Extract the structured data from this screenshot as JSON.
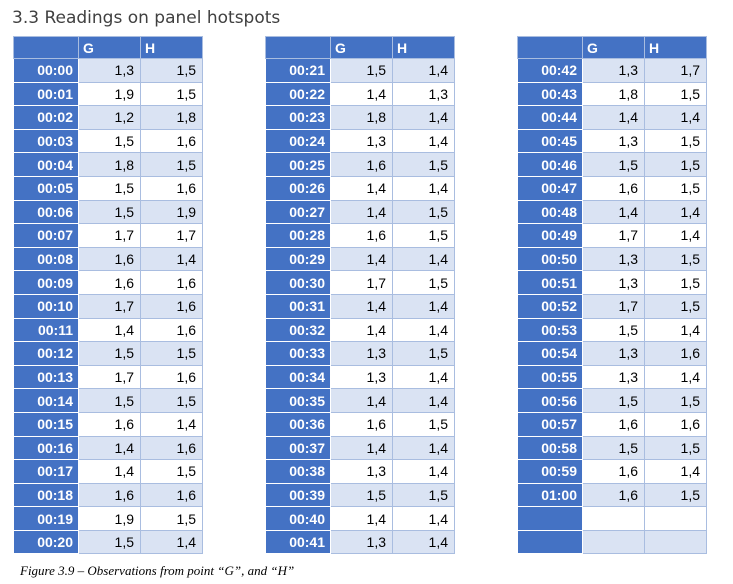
{
  "heading": "3.3 Readings on panel hotspots",
  "columns": {
    "time": "",
    "g": "G",
    "h": "H"
  },
  "blocks": [
    {
      "rows": [
        {
          "t": "00:00",
          "g": "1,3",
          "h": "1,5"
        },
        {
          "t": "00:01",
          "g": "1,9",
          "h": "1,5"
        },
        {
          "t": "00:02",
          "g": "1,2",
          "h": "1,8"
        },
        {
          "t": "00:03",
          "g": "1,5",
          "h": "1,6"
        },
        {
          "t": "00:04",
          "g": "1,8",
          "h": "1,5"
        },
        {
          "t": "00:05",
          "g": "1,5",
          "h": "1,6"
        },
        {
          "t": "00:06",
          "g": "1,5",
          "h": "1,9"
        },
        {
          "t": "00:07",
          "g": "1,7",
          "h": "1,7"
        },
        {
          "t": "00:08",
          "g": "1,6",
          "h": "1,4"
        },
        {
          "t": "00:09",
          "g": "1,6",
          "h": "1,6"
        },
        {
          "t": "00:10",
          "g": "1,7",
          "h": "1,6"
        },
        {
          "t": "00:11",
          "g": "1,4",
          "h": "1,6"
        },
        {
          "t": "00:12",
          "g": "1,5",
          "h": "1,5"
        },
        {
          "t": "00:13",
          "g": "1,7",
          "h": "1,6"
        },
        {
          "t": "00:14",
          "g": "1,5",
          "h": "1,5"
        },
        {
          "t": "00:15",
          "g": "1,6",
          "h": "1,4"
        },
        {
          "t": "00:16",
          "g": "1,4",
          "h": "1,6"
        },
        {
          "t": "00:17",
          "g": "1,4",
          "h": "1,5"
        },
        {
          "t": "00:18",
          "g": "1,6",
          "h": "1,6"
        },
        {
          "t": "00:19",
          "g": "1,9",
          "h": "1,5"
        },
        {
          "t": "00:20",
          "g": "1,5",
          "h": "1,4"
        }
      ]
    },
    {
      "rows": [
        {
          "t": "00:21",
          "g": "1,5",
          "h": "1,4"
        },
        {
          "t": "00:22",
          "g": "1,4",
          "h": "1,3"
        },
        {
          "t": "00:23",
          "g": "1,8",
          "h": "1,4"
        },
        {
          "t": "00:24",
          "g": "1,3",
          "h": "1,4"
        },
        {
          "t": "00:25",
          "g": "1,6",
          "h": "1,5"
        },
        {
          "t": "00:26",
          "g": "1,4",
          "h": "1,4"
        },
        {
          "t": "00:27",
          "g": "1,4",
          "h": "1,5"
        },
        {
          "t": "00:28",
          "g": "1,6",
          "h": "1,5"
        },
        {
          "t": "00:29",
          "g": "1,4",
          "h": "1,4"
        },
        {
          "t": "00:30",
          "g": "1,7",
          "h": "1,5"
        },
        {
          "t": "00:31",
          "g": "1,4",
          "h": "1,4"
        },
        {
          "t": "00:32",
          "g": "1,4",
          "h": "1,4"
        },
        {
          "t": "00:33",
          "g": "1,3",
          "h": "1,5"
        },
        {
          "t": "00:34",
          "g": "1,3",
          "h": "1,4"
        },
        {
          "t": "00:35",
          "g": "1,4",
          "h": "1,4"
        },
        {
          "t": "00:36",
          "g": "1,6",
          "h": "1,5"
        },
        {
          "t": "00:37",
          "g": "1,4",
          "h": "1,4"
        },
        {
          "t": "00:38",
          "g": "1,3",
          "h": "1,4"
        },
        {
          "t": "00:39",
          "g": "1,5",
          "h": "1,5"
        },
        {
          "t": "00:40",
          "g": "1,4",
          "h": "1,4"
        },
        {
          "t": "00:41",
          "g": "1,3",
          "h": "1,4"
        }
      ]
    },
    {
      "rows": [
        {
          "t": "00:42",
          "g": "1,3",
          "h": "1,7"
        },
        {
          "t": "00:43",
          "g": "1,8",
          "h": "1,5"
        },
        {
          "t": "00:44",
          "g": "1,4",
          "h": "1,4"
        },
        {
          "t": "00:45",
          "g": "1,3",
          "h": "1,5"
        },
        {
          "t": "00:46",
          "g": "1,5",
          "h": "1,5"
        },
        {
          "t": "00:47",
          "g": "1,6",
          "h": "1,5"
        },
        {
          "t": "00:48",
          "g": "1,4",
          "h": "1,4"
        },
        {
          "t": "00:49",
          "g": "1,7",
          "h": "1,4"
        },
        {
          "t": "00:50",
          "g": "1,3",
          "h": "1,5"
        },
        {
          "t": "00:51",
          "g": "1,3",
          "h": "1,5"
        },
        {
          "t": "00:52",
          "g": "1,7",
          "h": "1,5"
        },
        {
          "t": "00:53",
          "g": "1,5",
          "h": "1,4"
        },
        {
          "t": "00:54",
          "g": "1,3",
          "h": "1,6"
        },
        {
          "t": "00:55",
          "g": "1,3",
          "h": "1,4"
        },
        {
          "t": "00:56",
          "g": "1,5",
          "h": "1,5"
        },
        {
          "t": "00:57",
          "g": "1,6",
          "h": "1,6"
        },
        {
          "t": "00:58",
          "g": "1,5",
          "h": "1,5"
        },
        {
          "t": "00:59",
          "g": "1,6",
          "h": "1,4"
        },
        {
          "t": "01:00",
          "g": "1,6",
          "h": "1,5"
        },
        {
          "t": "",
          "g": "",
          "h": ""
        },
        {
          "t": "",
          "g": "",
          "h": ""
        }
      ]
    }
  ],
  "caption": "Figure 3.9 – Observations from point “G”, and “H”"
}
